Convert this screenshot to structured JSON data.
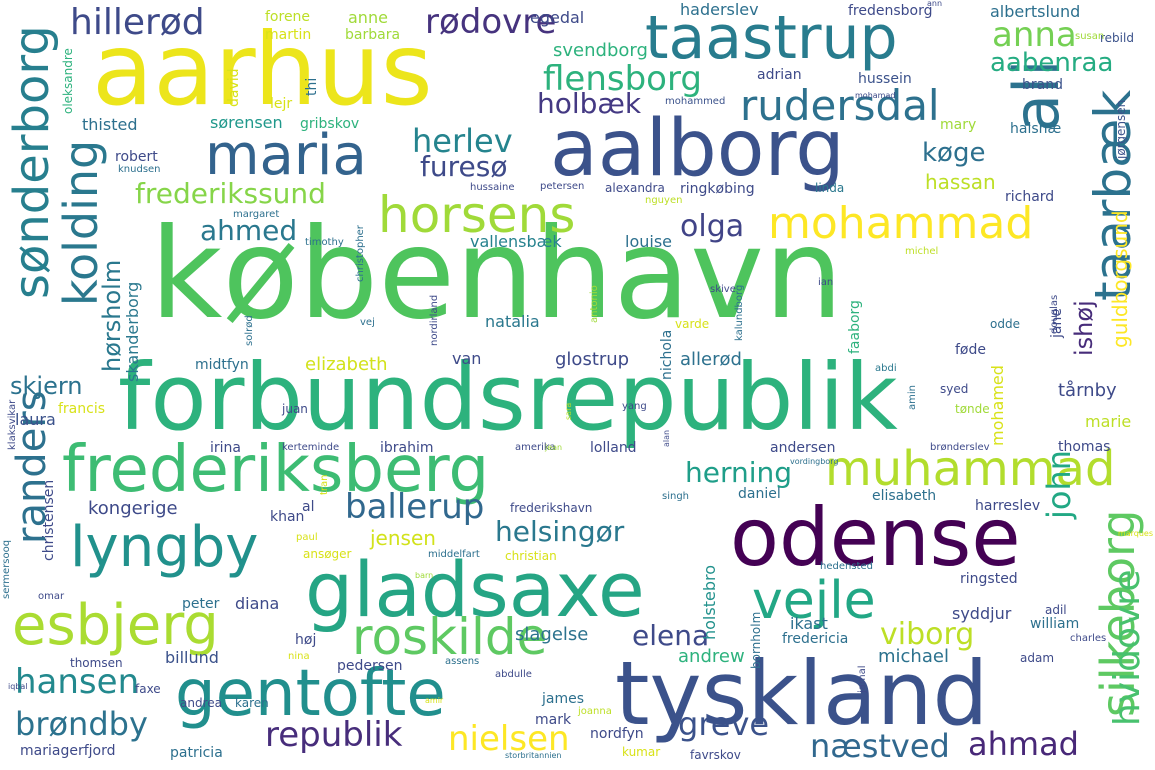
{
  "word_cloud": {
    "words": [
      {
        "text": "københavn",
        "color": "#4ec45d"
      },
      {
        "text": "forbundsrepublik",
        "color": "#2db27d"
      },
      {
        "text": "aarhus",
        "color": "#ece51b"
      },
      {
        "text": "tyskland",
        "color": "#3b528b"
      },
      {
        "text": "odense",
        "color": "#440154"
      },
      {
        "text": "aalborg",
        "color": "#3b528b"
      },
      {
        "text": "gladsaxe",
        "color": "#25a584"
      },
      {
        "text": "frederiksberg",
        "color": "#3dbc73"
      },
      {
        "text": "gentofte",
        "color": "#218f8d"
      },
      {
        "text": "taastrup",
        "color": "#287c8e"
      },
      {
        "text": "maria",
        "color": "#33638d"
      },
      {
        "text": "muhammad",
        "color": "#b2dd2d"
      },
      {
        "text": "lyngby",
        "color": "#21918c"
      },
      {
        "text": "esbjerg",
        "color": "#aadc32"
      },
      {
        "text": "sønderborg",
        "color": "#277f8e"
      },
      {
        "text": "horsens",
        "color": "#a0da39"
      },
      {
        "text": "roskilde",
        "color": "#5ec962"
      },
      {
        "text": "vejle",
        "color": "#22a785"
      },
      {
        "text": "mohammad",
        "color": "#fde725"
      },
      {
        "text": "taarbæk",
        "color": "#2c728e"
      },
      {
        "text": "rudersdal",
        "color": "#2d718e"
      },
      {
        "text": "ali",
        "color": "#2c728e"
      },
      {
        "text": "kolding",
        "color": "#2a788e"
      },
      {
        "text": "silkeborg",
        "color": "#5ec962"
      },
      {
        "text": "randers",
        "color": "#2d718e"
      },
      {
        "text": "hillerød",
        "color": "#3e4a89"
      },
      {
        "text": "flensborg",
        "color": "#2db27d"
      },
      {
        "text": "ballerup",
        "color": "#31688e"
      },
      {
        "text": "rødovre",
        "color": "#46337e"
      },
      {
        "text": "hansen",
        "color": "#23898e"
      },
      {
        "text": "republik",
        "color": "#472d7b"
      },
      {
        "text": "nielsen",
        "color": "#fde725"
      },
      {
        "text": "hvidovre",
        "color": "#48c16e"
      },
      {
        "text": "brøndby",
        "color": "#2c728e"
      },
      {
        "text": "ahmad",
        "color": "#482878"
      },
      {
        "text": "næstved",
        "color": "#31688e"
      },
      {
        "text": "greve",
        "color": "#3b528b"
      },
      {
        "text": "anna",
        "color": "#75d054"
      },
      {
        "text": "herlev",
        "color": "#25848e"
      },
      {
        "text": "holbæk",
        "color": "#443983"
      },
      {
        "text": "frederikssund",
        "color": "#86d549"
      },
      {
        "text": "ahmed",
        "color": "#2a788e"
      },
      {
        "text": "olga",
        "color": "#414487"
      },
      {
        "text": "furesø",
        "color": "#3e4a89"
      },
      {
        "text": "helsingør",
        "color": "#2a788e"
      },
      {
        "text": "herning",
        "color": "#1f9e89"
      },
      {
        "text": "aabenraa",
        "color": "#25ac82"
      },
      {
        "text": "john",
        "color": "#22a884"
      },
      {
        "text": "viborg",
        "color": "#bddf26"
      },
      {
        "text": "elena",
        "color": "#3e4a89"
      },
      {
        "text": "køge",
        "color": "#2d708e"
      },
      {
        "text": "hørsholm",
        "color": "#2a788e"
      },
      {
        "text": "ishøj",
        "color": "#472c7a"
      },
      {
        "text": "skjern",
        "color": "#2c728e"
      },
      {
        "text": "guldborgsund",
        "color": "#fde725"
      },
      {
        "text": "vallensbæk",
        "color": "#26828e"
      },
      {
        "text": "hassan",
        "color": "#bddf26"
      },
      {
        "text": "skanderborg",
        "color": "#2a788e"
      },
      {
        "text": "jensen",
        "color": "#d2e21b"
      },
      {
        "text": "holstebro",
        "color": "#21918c"
      },
      {
        "text": "andrew",
        "color": "#2db27d"
      },
      {
        "text": "slagelse",
        "color": "#2c728e"
      },
      {
        "text": "michael",
        "color": "#2c728e"
      },
      {
        "text": "kongerige",
        "color": "#3e4a89"
      },
      {
        "text": "billund",
        "color": "#3b528b"
      },
      {
        "text": "elizabeth",
        "color": "#d2e21b"
      },
      {
        "text": "glostrup",
        "color": "#3e4a89"
      },
      {
        "text": "allerød",
        "color": "#2d718e"
      },
      {
        "text": "louise",
        "color": "#2d708e"
      },
      {
        "text": "natalia",
        "color": "#2a788e"
      },
      {
        "text": "van",
        "color": "#3e4a89"
      },
      {
        "text": "thisted",
        "color": "#2d708e"
      },
      {
        "text": "sørensen",
        "color": "#1f988b"
      },
      {
        "text": "robert",
        "color": "#3e4a89"
      },
      {
        "text": "laura",
        "color": "#3b528b"
      },
      {
        "text": "anne",
        "color": "#a0da39"
      },
      {
        "text": "martin",
        "color": "#d8e219"
      },
      {
        "text": "barbara",
        "color": "#a0da39"
      },
      {
        "text": "forene",
        "color": "#bddf26"
      },
      {
        "text": "egedal",
        "color": "#3e4a89"
      },
      {
        "text": "svendborg",
        "color": "#2db27d"
      },
      {
        "text": "haderslev",
        "color": "#2d708e"
      },
      {
        "text": "fredensborg",
        "color": "#3e4a89"
      },
      {
        "text": "albertslund",
        "color": "#2d708e"
      },
      {
        "text": "hussein",
        "color": "#3b528b"
      },
      {
        "text": "brand",
        "color": "#3b528b"
      },
      {
        "text": "rebild",
        "color": "#3b528b"
      },
      {
        "text": "jørgensen",
        "color": "#3b528b"
      },
      {
        "text": "halsnæ",
        "color": "#2d708e"
      },
      {
        "text": "mary",
        "color": "#a0da39"
      },
      {
        "text": "richard",
        "color": "#3e4a89"
      },
      {
        "text": "ringkøbing",
        "color": "#3e4a89"
      },
      {
        "text": "alexandra",
        "color": "#3e4a89"
      },
      {
        "text": "petersen",
        "color": "#3e4a89"
      },
      {
        "text": "linda",
        "color": "#2a788e"
      },
      {
        "text": "nguyen",
        "color": "#bddf26"
      },
      {
        "text": "hussaine",
        "color": "#3e4a89"
      },
      {
        "text": "knudsen",
        "color": "#2d708e"
      },
      {
        "text": "gribskov",
        "color": "#2db27d"
      },
      {
        "text": "lejr",
        "color": "#d8e219"
      },
      {
        "text": "david",
        "color": "#d8e219"
      },
      {
        "text": "thi",
        "color": "#2d708e"
      },
      {
        "text": "adrian",
        "color": "#3e4a89"
      },
      {
        "text": "mohammed",
        "color": "#3b528b"
      },
      {
        "text": "mohamed",
        "color": "#d8e219"
      },
      {
        "text": "jane",
        "color": "#3e4a89"
      },
      {
        "text": "oleksandre",
        "color": "#2db27d"
      },
      {
        "text": "susan",
        "color": "#a0da39"
      },
      {
        "text": "ann",
        "color": "#3e4a89"
      },
      {
        "text": "margaret",
        "color": "#2d708e"
      },
      {
        "text": "timothy",
        "color": "#2d708e"
      },
      {
        "text": "christopher",
        "color": "#2d708e"
      },
      {
        "text": "solrød",
        "color": "#2d708e"
      },
      {
        "text": "vej",
        "color": "#2d708e"
      },
      {
        "text": "nordirland",
        "color": "#3e4a89"
      },
      {
        "text": "antonio",
        "color": "#a0da39"
      },
      {
        "text": "varde",
        "color": "#d8e219"
      },
      {
        "text": "kalundborg",
        "color": "#2d708e"
      },
      {
        "text": "skive",
        "color": "#3e4a89"
      },
      {
        "text": "ian",
        "color": "#3e4a89"
      },
      {
        "text": "odde",
        "color": "#2d708e"
      },
      {
        "text": "douglas",
        "color": "#3e4a89"
      },
      {
        "text": "michel",
        "color": "#bddf26"
      },
      {
        "text": "faaborg",
        "color": "#2db27d"
      },
      {
        "text": "nichola",
        "color": "#2d708e"
      },
      {
        "text": "føde",
        "color": "#3e4a89"
      },
      {
        "text": "abdi",
        "color": "#2a788e"
      },
      {
        "text": "syed",
        "color": "#3e4a89"
      },
      {
        "text": "amin",
        "color": "#2d708e"
      },
      {
        "text": "tønde",
        "color": "#a0da39"
      },
      {
        "text": "tårnby",
        "color": "#3e4a89"
      },
      {
        "text": "marie",
        "color": "#bddf26"
      },
      {
        "text": "midtfyn",
        "color": "#2d708e"
      },
      {
        "text": "francis",
        "color": "#d8e219"
      },
      {
        "text": "juan",
        "color": "#3e4a89"
      },
      {
        "text": "irina",
        "color": "#3e4a89"
      },
      {
        "text": "kerteminde",
        "color": "#3e4a89"
      },
      {
        "text": "ibrahim",
        "color": "#3e4a89"
      },
      {
        "text": "amerika",
        "color": "#3e4a89"
      },
      {
        "text": "jean",
        "color": "#a0da39"
      },
      {
        "text": "lolland",
        "color": "#3e4a89"
      },
      {
        "text": "yang",
        "color": "#3e4a89"
      },
      {
        "text": "sara",
        "color": "#bddf26"
      },
      {
        "text": "alan",
        "color": "#3e4a89"
      },
      {
        "text": "andersen",
        "color": "#3e4a89"
      },
      {
        "text": "thomas",
        "color": "#3e4a89"
      },
      {
        "text": "brønderslev",
        "color": "#3e4a89"
      },
      {
        "text": "vordingborg",
        "color": "#2d708e"
      },
      {
        "text": "klaksvikar",
        "color": "#3e4a89"
      },
      {
        "text": "christensen",
        "color": "#3e4a89"
      },
      {
        "text": "tran",
        "color": "#d8e219"
      },
      {
        "text": "khan",
        "color": "#3e4a89"
      },
      {
        "text": "al",
        "color": "#3e4a89"
      },
      {
        "text": "singh",
        "color": "#2d708e"
      },
      {
        "text": "daniel",
        "color": "#2d708e"
      },
      {
        "text": "elisabeth",
        "color": "#2d708e"
      },
      {
        "text": "harreslev",
        "color": "#3e4a89"
      },
      {
        "text": "frederikshavn",
        "color": "#3e4a89"
      },
      {
        "text": "sermersooq",
        "color": "#2d708e"
      },
      {
        "text": "paul",
        "color": "#d8e219"
      },
      {
        "text": "ansøger",
        "color": "#d8e219"
      },
      {
        "text": "middelfart",
        "color": "#2d708e"
      },
      {
        "text": "christian",
        "color": "#d8e219"
      },
      {
        "text": "marques",
        "color": "#d8e219"
      },
      {
        "text": "omar",
        "color": "#3e4a89"
      },
      {
        "text": "barn",
        "color": "#a0da39"
      },
      {
        "text": "hedensted",
        "color": "#2d708e"
      },
      {
        "text": "ringsted",
        "color": "#3e4a89"
      },
      {
        "text": "peter",
        "color": "#2d708e"
      },
      {
        "text": "diana",
        "color": "#3e4a89"
      },
      {
        "text": "syddjur",
        "color": "#3e4a89"
      },
      {
        "text": "adil",
        "color": "#3e4a89"
      },
      {
        "text": "bornholm",
        "color": "#2d708e"
      },
      {
        "text": "ikast",
        "color": "#2d708e"
      },
      {
        "text": "william",
        "color": "#2d708e"
      },
      {
        "text": "charles",
        "color": "#3e4a89"
      },
      {
        "text": "høj",
        "color": "#3e4a89"
      },
      {
        "text": "nina",
        "color": "#d8e219"
      },
      {
        "text": "fredericia",
        "color": "#2d708e"
      },
      {
        "text": "adam",
        "color": "#3e4a89"
      },
      {
        "text": "thomsen",
        "color": "#3e4a89"
      },
      {
        "text": "pedersen",
        "color": "#3e4a89"
      },
      {
        "text": "assens",
        "color": "#2d708e"
      },
      {
        "text": "abdulle",
        "color": "#3e4a89"
      },
      {
        "text": "jamal",
        "color": "#3e4a89"
      },
      {
        "text": "iqbal",
        "color": "#3e4a89"
      },
      {
        "text": "faxe",
        "color": "#3e4a89"
      },
      {
        "text": "andrea",
        "color": "#3e4a89"
      },
      {
        "text": "karen",
        "color": "#2d708e"
      },
      {
        "text": "amir",
        "color": "#d8e219"
      },
      {
        "text": "james",
        "color": "#2d708e"
      },
      {
        "text": "joanna",
        "color": "#bddf26"
      },
      {
        "text": "mark",
        "color": "#3e4a89"
      },
      {
        "text": "nordfyn",
        "color": "#3e4a89"
      },
      {
        "text": "kumar",
        "color": "#d8e219"
      },
      {
        "text": "mariagerfjord",
        "color": "#3e4a89"
      },
      {
        "text": "patricia",
        "color": "#2d708e"
      },
      {
        "text": "storbritannien",
        "color": "#2d708e"
      },
      {
        "text": "favrskov",
        "color": "#3e4a89"
      },
      {
        "text": "mohamad",
        "color": "#3e4a89"
      }
    ]
  }
}
